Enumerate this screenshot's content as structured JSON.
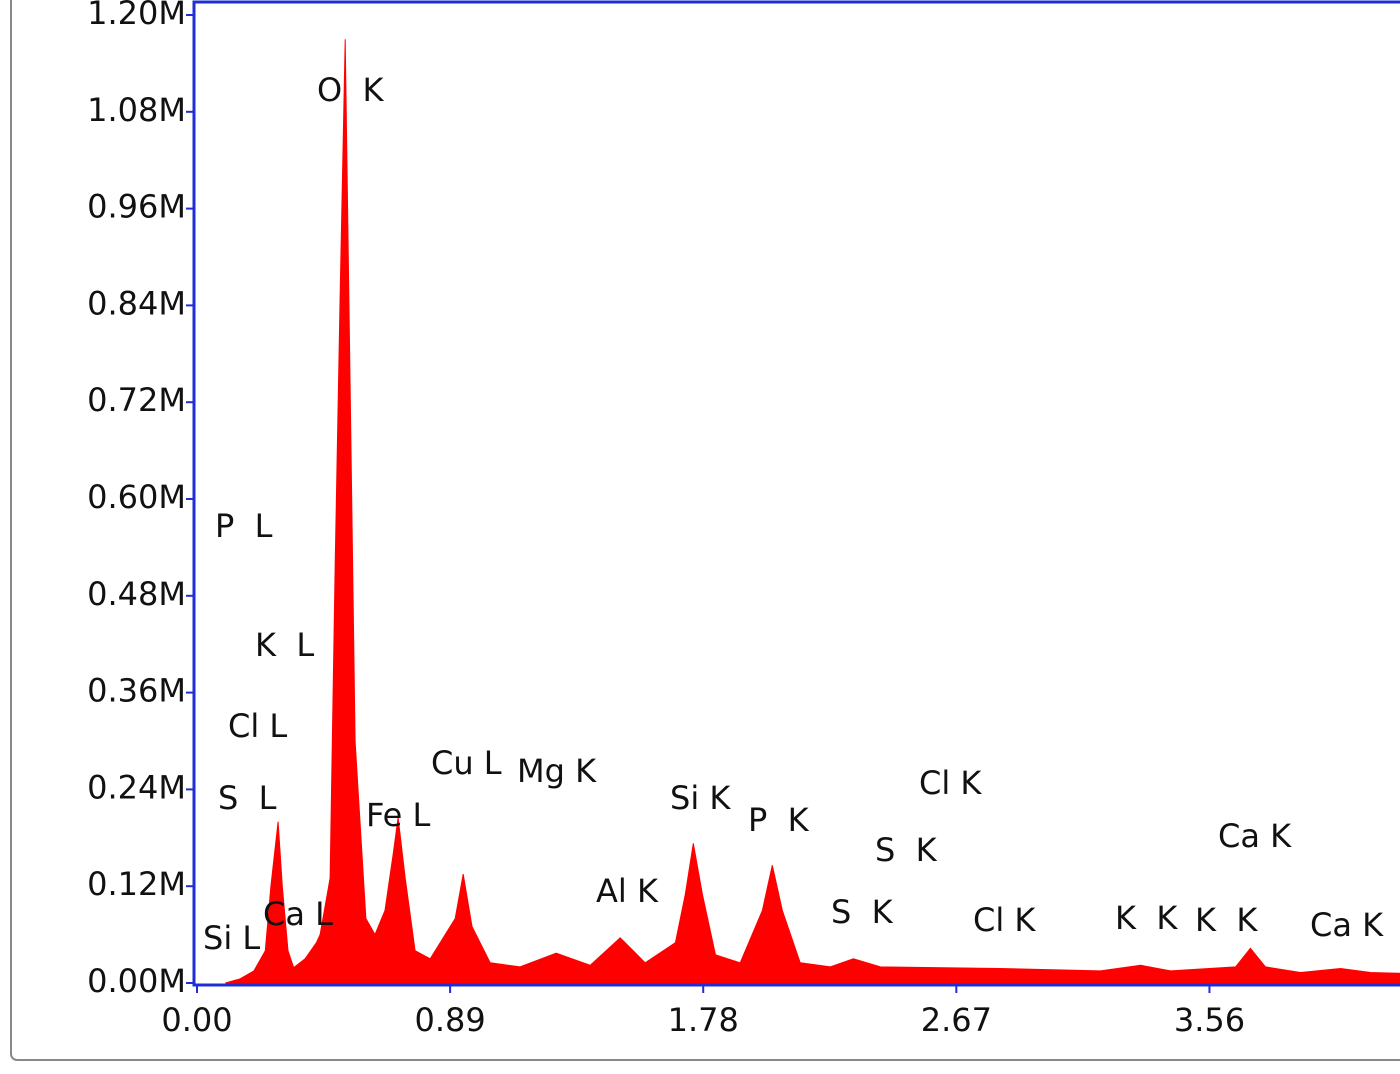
{
  "chart_data": {
    "type": "area",
    "color": "#ff0000",
    "x": [
      0.1,
      0.15,
      0.2,
      0.24,
      0.26,
      0.285,
      0.3,
      0.32,
      0.34,
      0.38,
      0.42,
      0.433,
      0.468,
      0.486,
      0.503,
      0.521,
      0.538,
      0.556,
      0.573,
      0.594,
      0.626,
      0.661,
      0.69,
      0.707,
      0.732,
      0.767,
      0.82,
      0.908,
      0.936,
      0.967,
      1.031,
      1.136,
      1.263,
      1.383,
      1.488,
      1.576,
      1.682,
      1.717,
      1.745,
      1.777,
      1.823,
      1.91,
      1.988,
      2.023,
      2.058,
      2.121,
      2.227,
      2.308,
      2.403,
      2.825,
      3.177,
      3.318,
      3.423,
      3.652,
      3.704,
      3.757,
      3.88,
      4.021,
      4.127,
      4.23
    ],
    "values": [
      0,
      5000,
      15000,
      40000,
      120000,
      200000,
      120000,
      40000,
      19000,
      30000,
      50000,
      60000,
      130000,
      520000,
      850000,
      1170000,
      750000,
      300000,
      200000,
      80000,
      60000,
      90000,
      160000,
      205000,
      130000,
      40000,
      30000,
      80000,
      135000,
      70000,
      25000,
      20000,
      37000,
      22000,
      56000,
      25000,
      50000,
      110000,
      173000,
      110000,
      35000,
      25000,
      90000,
      146000,
      90000,
      25000,
      20000,
      30000,
      20000,
      18000,
      15000,
      22000,
      15000,
      20000,
      43000,
      20000,
      13000,
      18000,
      13000,
      12000
    ],
    "xlim": [
      0,
      4.23
    ],
    "ylim": [
      0,
      1200000
    ],
    "xticks": [
      {
        "value": 0,
        "label": "0.00"
      },
      0.89,
      1.78,
      2.67,
      3.56
    ],
    "yticks": [
      {
        "value": 0,
        "label": "0.00M"
      },
      {
        "value": 120000,
        "label": "0.12M"
      },
      {
        "value": 240000,
        "label": "0.24M"
      },
      {
        "value": 360000,
        "label": "0.36M"
      },
      {
        "value": 480000,
        "label": "0.48M"
      },
      {
        "value": 600000,
        "label": "0.60M"
      },
      {
        "value": 720000,
        "label": "0.72M"
      },
      {
        "value": 840000,
        "label": "0.84M"
      },
      {
        "value": 960000,
        "label": "0.96M"
      },
      {
        "value": 1080000,
        "label": "1.08M"
      },
      {
        "value": 1200000,
        "label": "1.20M"
      }
    ],
    "annotations": [
      "O  K",
      "P  L",
      "K  L",
      "Cl L",
      "S  L",
      "Si L",
      "Ca L",
      "Fe L",
      "Cu L",
      "Mg K",
      "Al K",
      "Si K",
      "P  K",
      "S  K",
      "S  K",
      "Cl K",
      "Cl K",
      "K  K",
      "K  K",
      "Ca K",
      "Ca K"
    ]
  }
}
